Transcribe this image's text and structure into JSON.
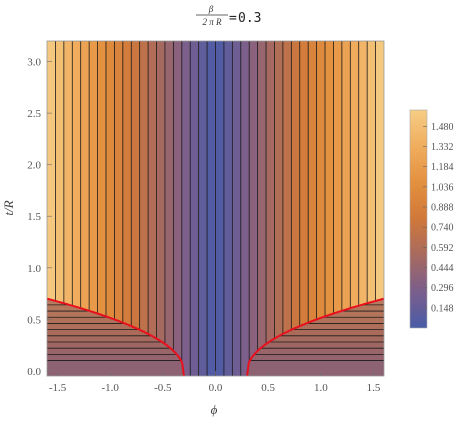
{
  "chart_data": {
    "type": "heatmap",
    "title": {
      "numerator": "β",
      "denominator": "2 π R",
      "equals": "=",
      "value": "0.3"
    },
    "xlabel": "ϕ",
    "ylabel": "t/R",
    "xlim": [
      -1.6,
      1.6
    ],
    "ylim": [
      -0.05,
      3.2
    ],
    "x_ticks": [
      "-1.5",
      "-1.0",
      "-0.5",
      "0.0",
      "0.5",
      "1.0",
      "1.5"
    ],
    "x_tick_values": [
      -1.5,
      -1.0,
      -0.5,
      0.0,
      0.5,
      1.0,
      1.5
    ],
    "y_ticks": [
      "0.0",
      "0.5",
      "1.0",
      "1.5",
      "2.0",
      "2.5",
      "3.0"
    ],
    "y_tick_values": [
      0.0,
      0.5,
      1.0,
      1.5,
      2.0,
      2.5,
      3.0
    ],
    "colorbar": {
      "range": [
        0.0,
        1.6
      ],
      "ticks": [
        "1.480",
        "1.332",
        "1.184",
        "1.036",
        "0.888",
        "0.740",
        "0.592",
        "0.444",
        "0.296",
        "0.148"
      ],
      "tick_values": [
        1.48,
        1.332,
        1.184,
        1.036,
        0.888,
        0.74,
        0.592,
        0.444,
        0.296,
        0.148
      ],
      "colors": [
        "#4a5ca8",
        "#7a5e8c",
        "#a76a60",
        "#d0783a",
        "#e3903e",
        "#f0ad5e",
        "#f6cd85"
      ]
    },
    "boundary": {
      "color": "#e8101e",
      "phi_min": 0.3,
      "phi_max": 1.6,
      "t_at_phi_max": 0.7
    },
    "region_below": {
      "t_levels_from": 0.1,
      "t_levels_step": 0.06
    },
    "region_above": {
      "contour_step": 0.08,
      "central_band_width": 0.12
    }
  }
}
